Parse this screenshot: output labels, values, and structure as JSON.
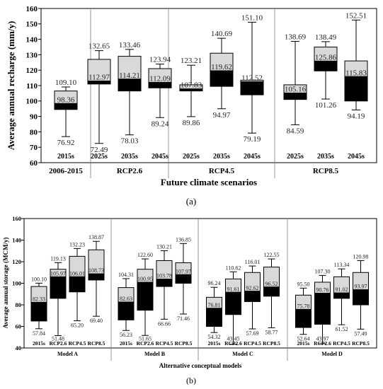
{
  "chart_data": [
    {
      "type": "boxplot",
      "panel_label": "(a)",
      "ylabel": "Average annual recharge (mm/y)",
      "xlabel": "Future climate scenarios",
      "ylim": [
        60,
        160
      ],
      "yticks": [
        60,
        70,
        80,
        90,
        100,
        110,
        120,
        130,
        140,
        150,
        160
      ],
      "grid": false,
      "groups": [
        {
          "label": "2006-2015",
          "boxes": [
            {
              "label": "2015s",
              "max": 109.1,
              "median": 98.36,
              "min": 76.92,
              "q1": 94.5,
              "q3": 106.5
            }
          ]
        },
        {
          "label": "RCP2.6",
          "boxes": [
            {
              "label": "2025s",
              "max": 132.65,
              "median": 112.97,
              "min": 72.49,
              "q1": 111.0,
              "q3": 127.0
            },
            {
              "label": "2035s",
              "max": 133.46,
              "median": 114.21,
              "min": 78.03,
              "q1": 106.5,
              "q3": 129.0
            },
            {
              "label": "2045s",
              "max": 123.94,
              "median": 112.09,
              "min": 89.24,
              "q1": 108.5,
              "q3": 121.0
            }
          ]
        },
        {
          "label": "RCP4.5",
          "boxes": [
            {
              "label": "2025s",
              "max": 123.21,
              "median": 107.83,
              "min": 89.86,
              "q1": 106.5,
              "q3": 110.5
            },
            {
              "label": "2035s",
              "max": 140.69,
              "median": 119.62,
              "min": 94.97,
              "q1": 109.5,
              "q3": 131.0
            },
            {
              "label": "2045s",
              "max": 151.1,
              "median": 112.52,
              "min": 79.19,
              "q1": 104.0,
              "q3": 113.5
            }
          ]
        },
        {
          "label": "RCP8.5",
          "boxes": [
            {
              "label": "2025s",
              "max": 138.69,
              "median": 105.16,
              "min": 84.59,
              "q1": 101.0,
              "q3": 110.5
            },
            {
              "label": "2035s",
              "max": 138.49,
              "median": 125.86,
              "min": 101.26,
              "q1": 119.5,
              "q3": 135.0
            },
            {
              "label": "2045s",
              "max": 152.51,
              "median": 115.83,
              "min": 94.19,
              "q1": 100.0,
              "q3": 126.0
            }
          ]
        }
      ]
    },
    {
      "type": "boxplot",
      "panel_label": "(b)",
      "ylabel": "Average annual storage (MCM/y)",
      "xlabel": "Alternative conceptual models",
      "ylim": [
        40,
        160
      ],
      "yticks": [
        40,
        60,
        80,
        100,
        120,
        140,
        160
      ],
      "grid": false,
      "groups": [
        {
          "label": "Model A",
          "boxes": [
            {
              "label": "2015s",
              "max": 100.1,
              "median": 82.33,
              "min": 57.84,
              "q1": 65.0,
              "q3": 97.0
            },
            {
              "label": "RCP2.6",
              "max": 119.13,
              "median": 105.97,
              "min": 51.48,
              "q1": 86.0,
              "q3": 113.0
            },
            {
              "label": "RCP4.5",
              "max": 132.23,
              "median": 106.01,
              "min": 65.2,
              "q1": 92.0,
              "q3": 125.0
            },
            {
              "label": "RCP8.5",
              "max": 138.87,
              "median": 108.73,
              "min": 69.4,
              "q1": 103.0,
              "q3": 131.0
            }
          ]
        },
        {
          "label": "Model B",
          "boxes": [
            {
              "label": "2015s",
              "max": 104.31,
              "median": 82.63,
              "min": 56.23,
              "q1": 66.0,
              "q3": 96.0
            },
            {
              "label": "RCP2.6",
              "max": 122.6,
              "median": 100.95,
              "min": 51.65,
              "q1": 75.0,
              "q3": 113.0
            },
            {
              "label": "RCP4.5",
              "max": 130.21,
              "median": 103.78,
              "min": 66.66,
              "q1": 97.0,
              "q3": 121.0
            },
            {
              "label": "RCP8.5",
              "max": 136.85,
              "median": 107.97,
              "min": 71.46,
              "q1": 100.0,
              "q3": 119.0
            }
          ]
        },
        {
          "label": "Model C",
          "boxes": [
            {
              "label": "2015s",
              "max": 96.24,
              "median": 76.81,
              "min": 54.32,
              "q1": 60.0,
              "q3": 87.0
            },
            {
              "label": "RCP2.6",
              "max": 110.62,
              "median": 91.61,
              "min": 43.45,
              "q1": 71.0,
              "q3": 104.0
            },
            {
              "label": "RCP4.5",
              "max": 116.01,
              "median": 92.62,
              "min": 57.69,
              "q1": 83.0,
              "q3": 110.0
            },
            {
              "label": "RCP8.5",
              "max": 122.55,
              "median": 96.52,
              "min": 58.77,
              "q1": 88.0,
              "q3": 115.0
            }
          ]
        },
        {
          "label": "Model D",
          "boxes": [
            {
              "label": "2015s",
              "max": 95.5,
              "median": 75.78,
              "min": 52.64,
              "q1": 59.0,
              "q3": 89.0
            },
            {
              "label": "RCP2.6",
              "max": 107.3,
              "median": 90.76,
              "min": 43.97,
              "q1": 62.0,
              "q3": 101.0
            },
            {
              "label": "RCP4.5",
              "max": 113.34,
              "median": 91.02,
              "min": 61.52,
              "q1": 86.0,
              "q3": 106.0
            },
            {
              "label": "RCP8.5",
              "max": 120.98,
              "median": 93.97,
              "min": 57.49,
              "q1": 80.0,
              "q3": 110.0
            }
          ]
        }
      ]
    }
  ],
  "colors": {
    "box_upper": "#d9d9d9",
    "box_lower": "#000000",
    "stroke": "#000000",
    "divider": "#808080",
    "value_label": "#222222"
  }
}
